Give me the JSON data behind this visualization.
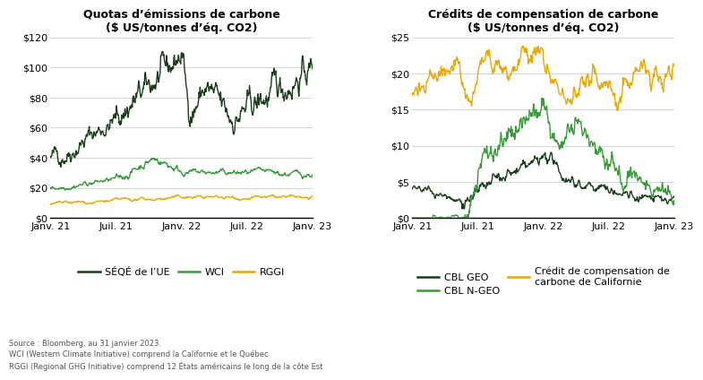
{
  "title1": "Quotas d’émissions de carbone\n($ US/tonnes d’éq. CO2)",
  "title2": "Crédits de compensation de carbone\n($ US/tonnes d’éq. CO2)",
  "xtick_labels": [
    "Janv. 21",
    "Juil. 21",
    "Janv. 22",
    "Juil. 22",
    "Janv. 23"
  ],
  "ylim1": [
    0,
    120
  ],
  "ylim2": [
    0,
    25
  ],
  "yticks1": [
    0,
    20,
    40,
    60,
    80,
    100,
    120
  ],
  "yticks2": [
    0,
    5,
    10,
    15,
    20,
    25
  ],
  "color_dark_green": "#1a3d1a",
  "color_mid_green": "#3a9a3a",
  "color_gold": "#e8a800",
  "footnote": "Source : Bloomberg, au 31 janvier 2023.\nWCI (Western Climate Initiative) comprend la Californie et le Québec\nRGGI (Regional GHG Initiative) comprend 12 États américains le long de la côte Est",
  "legend1": [
    {
      "label": "SÉQÉ de l’UE",
      "color": "#1a3d1a"
    },
    {
      "label": "WCI",
      "color": "#3a9a3a"
    },
    {
      "label": "RGGI",
      "color": "#e8a800"
    }
  ],
  "legend2": [
    {
      "label": "CBL GEO",
      "color": "#1a3d1a"
    },
    {
      "label": "CBL N-GEO",
      "color": "#3a9a3a"
    },
    {
      "label": "Crédit de compensation de\ncarbone de Californie",
      "color": "#e8a800"
    }
  ]
}
